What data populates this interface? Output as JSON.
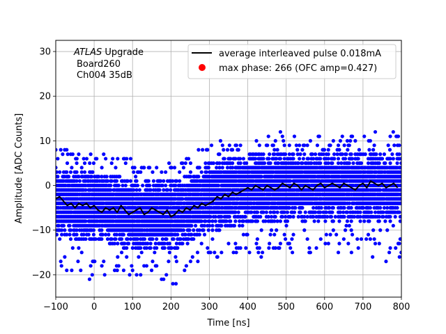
{
  "chart_data": {
    "type": "scatter",
    "xlabel": "Time [ns]",
    "ylabel": "Amplitude [ADC Counts]",
    "xlim": [
      -100,
      800
    ],
    "ylim": [
      -25,
      32.5
    ],
    "xticks": [
      -100,
      0,
      100,
      200,
      300,
      400,
      500,
      600,
      700,
      800
    ],
    "yticks": [
      -20,
      -10,
      0,
      10,
      20,
      30
    ],
    "grid": true,
    "annotation": {
      "experiment": "ATLAS",
      "experiment_suffix": " Upgrade",
      "line2": "Board260",
      "line3": "Ch004 35dB"
    },
    "legend": {
      "placement": "top-right",
      "entries": [
        {
          "label": "average interleaved pulse 0.018mA",
          "marker": "line",
          "color": "#000000"
        },
        {
          "label": "max phase: 266 (OFC amp=0.427)",
          "marker": "dot",
          "color": "#ff0000"
        }
      ]
    },
    "series": [
      {
        "name": "samples",
        "color": "#0000ff",
        "kind": "scatter",
        "x_start": -100,
        "x_end": 800,
        "x_step": 2.6,
        "y_grid_step": 1,
        "band_center": [
          [
            -100,
            -3.5
          ],
          [
            0,
            -4.5
          ],
          [
            100,
            -6
          ],
          [
            200,
            -6.5
          ],
          [
            300,
            -2
          ],
          [
            400,
            -0.5
          ],
          [
            500,
            0
          ],
          [
            600,
            0
          ],
          [
            700,
            0
          ],
          [
            800,
            0
          ]
        ],
        "band_halfwidth": 6
      },
      {
        "name": "average interleaved pulse 0.018mA",
        "color": "#000000",
        "kind": "line",
        "x": [
          -100,
          -90,
          -80,
          -70,
          -60,
          -50,
          -40,
          -30,
          -20,
          -10,
          0,
          10,
          20,
          30,
          40,
          50,
          60,
          70,
          80,
          90,
          100,
          110,
          120,
          130,
          140,
          150,
          160,
          170,
          180,
          190,
          200,
          210,
          220,
          230,
          240,
          250,
          260,
          270,
          280,
          290,
          300,
          310,
          320,
          330,
          340,
          350,
          360,
          370,
          380,
          390,
          400,
          410,
          420,
          430,
          440,
          450,
          460,
          470,
          480,
          490,
          500,
          510,
          520,
          530,
          540,
          550,
          560,
          570,
          580,
          590,
          600,
          610,
          620,
          630,
          640,
          650,
          660,
          670,
          680,
          690,
          700,
          710,
          720,
          730,
          740,
          750,
          760,
          770,
          780,
          790
        ],
        "y": [
          -3,
          -2.5,
          -3.5,
          -4.5,
          -4,
          -5,
          -4,
          -4.5,
          -4,
          -5,
          -4.5,
          -5.5,
          -6,
          -5,
          -5.5,
          -5,
          -6,
          -4.5,
          -5.5,
          -6.5,
          -6,
          -5.5,
          -5,
          -6.5,
          -6,
          -5,
          -5.5,
          -6,
          -6.5,
          -5.5,
          -7,
          -6.5,
          -5.5,
          -6,
          -5,
          -5.5,
          -4.5,
          -5,
          -4,
          -4.5,
          -4,
          -3.5,
          -2.5,
          -3,
          -2,
          -2.5,
          -1.5,
          -2,
          -1.5,
          -1,
          -0.5,
          -1,
          0,
          -0.5,
          -1,
          0,
          -0.5,
          -1,
          -0.5,
          0.5,
          0,
          -0.5,
          0.5,
          0,
          -1,
          0,
          -0.5,
          -1,
          0,
          0.5,
          -0.5,
          0,
          0.5,
          0,
          -0.5,
          0.5,
          0,
          -0.5,
          -1,
          0,
          0.5,
          -0.5,
          1,
          0.5,
          0,
          0.5,
          -0.5,
          0,
          0.5,
          -0.5
        ]
      }
    ],
    "points": [
      {
        "x": 715,
        "y": 10
      },
      {
        "x": -82,
        "y": 7
      },
      {
        "x": -45,
        "y": 6
      },
      {
        "x": 595,
        "y": 8
      },
      {
        "x": 530,
        "y": 7
      },
      {
        "x": 790,
        "y": 9
      },
      {
        "x": 770,
        "y": 8
      },
      {
        "x": 690,
        "y": 8
      },
      {
        "x": 660,
        "y": 8
      },
      {
        "x": 625,
        "y": 7
      },
      {
        "x": 565,
        "y": 7
      },
      {
        "x": 495,
        "y": 7
      },
      {
        "x": 455,
        "y": 6
      },
      {
        "x": 415,
        "y": 6
      },
      {
        "x": 380,
        "y": 6
      },
      {
        "x": 348,
        "y": 5
      },
      {
        "x": 320,
        "y": 5
      },
      {
        "x": 298,
        "y": 4
      },
      {
        "x": 195,
        "y": 5
      },
      {
        "x": 130,
        "y": 4
      },
      {
        "x": 20,
        "y": 4
      },
      {
        "x": -5,
        "y": 3
      },
      {
        "x": -70,
        "y": 5
      },
      {
        "x": 205,
        "y": -22
      },
      {
        "x": 213,
        "y": -22
      },
      {
        "x": -12,
        "y": -21
      },
      {
        "x": 188,
        "y": -20
      },
      {
        "x": 100,
        "y": -19
      },
      {
        "x": 160,
        "y": -18
      },
      {
        "x": 240,
        "y": -18
      },
      {
        "x": 60,
        "y": -19
      },
      {
        "x": -5,
        "y": -20
      },
      {
        "x": -85,
        "y": -18
      },
      {
        "x": -42,
        "y": -17
      },
      {
        "x": 20,
        "y": -18
      },
      {
        "x": 130,
        "y": -18
      },
      {
        "x": 270,
        "y": -17
      },
      {
        "x": 320,
        "y": -16
      },
      {
        "x": 435,
        "y": -16
      },
      {
        "x": 725,
        "y": -16
      },
      {
        "x": 760,
        "y": -17
      },
      {
        "x": 795,
        "y": -16
      },
      {
        "x": 670,
        "y": -15
      },
      {
        "x": 560,
        "y": -15
      },
      {
        "x": 455,
        "y": -14
      },
      {
        "x": 395,
        "y": -14
      },
      {
        "x": 370,
        "y": -15
      },
      {
        "x": 350,
        "y": -13
      },
      {
        "x": 505,
        "y": -13
      },
      {
        "x": 610,
        "y": -13
      },
      {
        "x": 785,
        "y": -14
      },
      {
        "x": 650,
        "y": -12
      },
      {
        "x": 590,
        "y": -12
      },
      {
        "x": 515,
        "y": -12
      },
      {
        "x": 425,
        "y": -12
      }
    ]
  }
}
